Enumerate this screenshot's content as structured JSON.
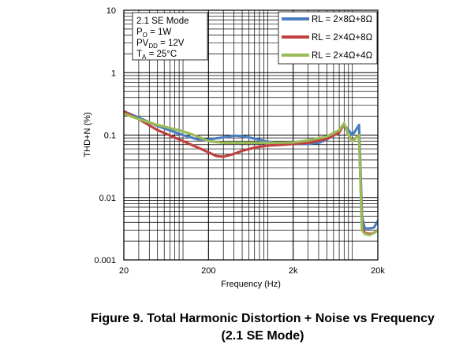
{
  "chart_data": {
    "type": "line",
    "xlabel": "Frequency (Hz)",
    "ylabel": "THD+N (%)",
    "xscale": "log",
    "yscale": "log",
    "xlim": [
      20,
      20000
    ],
    "ylim": [
      0.001,
      10
    ],
    "grid": true,
    "legend_position": "top-right",
    "x_ticks": [
      {
        "value": 20,
        "label": "20"
      },
      {
        "value": 200,
        "label": "200"
      },
      {
        "value": 2000,
        "label": "2k"
      },
      {
        "value": 20000,
        "label": "20k"
      }
    ],
    "y_ticks": [
      {
        "value": 10,
        "label": "10"
      },
      {
        "value": 1,
        "label": "1"
      },
      {
        "value": 0.1,
        "label": "0.1"
      },
      {
        "value": 0.01,
        "label": "0.01"
      },
      {
        "value": 0.001,
        "label": "0.001"
      }
    ],
    "annotation_lines": [
      {
        "main": "2.1 SE Mode",
        "sub": "",
        "rest": ""
      },
      {
        "main": "P",
        "sub": "O",
        "rest": " = 1W"
      },
      {
        "main": "PV",
        "sub": "DD",
        "rest": " = 12V"
      },
      {
        "main": "T",
        "sub": "A",
        "rest": " = 25°C"
      }
    ],
    "series": [
      {
        "name": "RL = 2×8Ω+8Ω",
        "color": "#4a7ebf",
        "points": [
          [
            20,
            0.24
          ],
          [
            30,
            0.19
          ],
          [
            50,
            0.14
          ],
          [
            100,
            0.1
          ],
          [
            150,
            0.085
          ],
          [
            200,
            0.085
          ],
          [
            300,
            0.092
          ],
          [
            400,
            0.098
          ],
          [
            500,
            0.096
          ],
          [
            700,
            0.088
          ],
          [
            1000,
            0.078
          ],
          [
            1500,
            0.073
          ],
          [
            2000,
            0.072
          ],
          [
            3000,
            0.072
          ],
          [
            4000,
            0.075
          ],
          [
            5000,
            0.085
          ],
          [
            6000,
            0.1
          ],
          [
            7000,
            0.12
          ],
          [
            8000,
            0.145
          ],
          [
            9000,
            0.12
          ],
          [
            10000,
            0.1
          ],
          [
            11000,
            0.12
          ],
          [
            12000,
            0.145
          ],
          [
            13000,
            0.005
          ],
          [
            14000,
            0.0032
          ],
          [
            16000,
            0.0032
          ],
          [
            18000,
            0.0033
          ],
          [
            20000,
            0.0042
          ]
        ]
      },
      {
        "name": "RL = 2×4Ω+8Ω",
        "color": "#c0403f",
        "points": [
          [
            20,
            0.24
          ],
          [
            30,
            0.18
          ],
          [
            50,
            0.12
          ],
          [
            100,
            0.08
          ],
          [
            150,
            0.063
          ],
          [
            200,
            0.053
          ],
          [
            250,
            0.046
          ],
          [
            300,
            0.045
          ],
          [
            400,
            0.05
          ],
          [
            500,
            0.056
          ],
          [
            700,
            0.063
          ],
          [
            1000,
            0.068
          ],
          [
            1500,
            0.07
          ],
          [
            2000,
            0.072
          ],
          [
            3000,
            0.075
          ],
          [
            5000,
            0.087
          ],
          [
            7000,
            0.11
          ],
          [
            8000,
            0.15
          ],
          [
            9000,
            0.1
          ],
          [
            10000,
            0.08
          ],
          [
            12000,
            0.1
          ],
          [
            13000,
            0.0035
          ],
          [
            14000,
            0.0027
          ],
          [
            16000,
            0.0026
          ],
          [
            18000,
            0.0027
          ],
          [
            20000,
            0.003
          ]
        ]
      },
      {
        "name": "RL = 2×4Ω+4Ω",
        "color": "#9bbb59",
        "points": [
          [
            20,
            0.22
          ],
          [
            30,
            0.18
          ],
          [
            50,
            0.145
          ],
          [
            100,
            0.115
          ],
          [
            150,
            0.095
          ],
          [
            200,
            0.08
          ],
          [
            300,
            0.075
          ],
          [
            500,
            0.075
          ],
          [
            1000,
            0.075
          ],
          [
            2000,
            0.076
          ],
          [
            3000,
            0.082
          ],
          [
            5000,
            0.095
          ],
          [
            7000,
            0.12
          ],
          [
            8000,
            0.155
          ],
          [
            9000,
            0.1
          ],
          [
            10000,
            0.08
          ],
          [
            12000,
            0.1
          ],
          [
            13000,
            0.003
          ],
          [
            14000,
            0.0026
          ],
          [
            16000,
            0.0025
          ],
          [
            18000,
            0.0027
          ],
          [
            20000,
            0.003
          ]
        ]
      }
    ]
  },
  "caption": {
    "line1": "Figure 9. Total Harmonic Distortion + Noise vs Frequency",
    "line2": "(2.1 SE Mode)"
  }
}
